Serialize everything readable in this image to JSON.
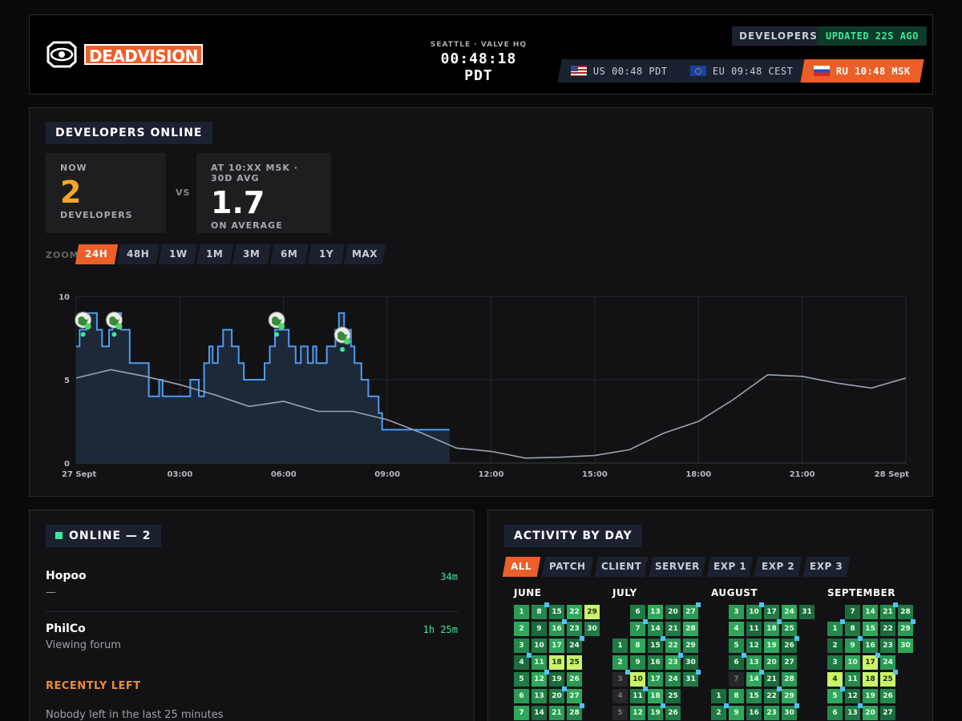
{
  "header": {
    "logo_text_dead": "DEAD",
    "logo_text_vision": "VISION",
    "clock_location": "SEATTLE · VALVE HQ",
    "clock_time": "00:48:18 PDT",
    "developers_label": "DEVELOPERS",
    "updated_label": "UPDATED 22S AGO",
    "timezones": [
      {
        "label": "US 00:48 PDT",
        "flag": "us-flag-icon",
        "active": false
      },
      {
        "label": "EU 09:48 CEST",
        "flag": "eu-flag-icon",
        "active": false
      },
      {
        "label": "RU 10:48 MSK",
        "flag": "ru-flag-icon",
        "active": true
      }
    ]
  },
  "developers_online": {
    "title": "DEVELOPERS ONLINE",
    "now_label": "NOW",
    "now_value": "2",
    "now_sub": "DEVELOPERS",
    "vs": "VS",
    "avg_label": "AT 10:XX MSK · 30D AVG",
    "avg_value": "1.7",
    "avg_sub": "ON AVERAGE",
    "zoom_label": "ZOOM",
    "zoom_options": [
      "24H",
      "48H",
      "1W",
      "1M",
      "3M",
      "6M",
      "1Y",
      "MAX"
    ],
    "zoom_active": "24H"
  },
  "chart_data": {
    "type": "line",
    "ylim": [
      0,
      10
    ],
    "y_ticks": [
      "0",
      "5",
      "10"
    ],
    "x_tick_labels": [
      "27 Sept",
      "03:00",
      "06:00",
      "09:00",
      "12:00",
      "15:00",
      "18:00",
      "21:00",
      "28 Sept"
    ],
    "xlim_hours": [
      0,
      24
    ],
    "series": [
      {
        "color": "#4d9cf0",
        "fill": true,
        "step": true,
        "points": [
          [
            0,
            7
          ],
          [
            0.1,
            7
          ],
          [
            0.1,
            8
          ],
          [
            0.3,
            8
          ],
          [
            0.3,
            9
          ],
          [
            0.6,
            9
          ],
          [
            0.6,
            8
          ],
          [
            0.75,
            8
          ],
          [
            0.75,
            7
          ],
          [
            0.95,
            7
          ],
          [
            0.95,
            8
          ],
          [
            1.05,
            8
          ],
          [
            1.05,
            9
          ],
          [
            1.3,
            9
          ],
          [
            1.3,
            8
          ],
          [
            1.55,
            8
          ],
          [
            1.55,
            6
          ],
          [
            2.1,
            6
          ],
          [
            2.1,
            4
          ],
          [
            2.4,
            4
          ],
          [
            2.4,
            5
          ],
          [
            2.5,
            5
          ],
          [
            2.5,
            4
          ],
          [
            3.3,
            4
          ],
          [
            3.3,
            5
          ],
          [
            3.55,
            5
          ],
          [
            3.55,
            4
          ],
          [
            3.7,
            4
          ],
          [
            3.7,
            6
          ],
          [
            3.85,
            6
          ],
          [
            3.85,
            7
          ],
          [
            3.95,
            7
          ],
          [
            3.95,
            6
          ],
          [
            4.1,
            6
          ],
          [
            4.1,
            7
          ],
          [
            4.25,
            7
          ],
          [
            4.25,
            8
          ],
          [
            4.5,
            8
          ],
          [
            4.5,
            7
          ],
          [
            4.7,
            7
          ],
          [
            4.7,
            6
          ],
          [
            4.85,
            6
          ],
          [
            4.85,
            5
          ],
          [
            5.45,
            5
          ],
          [
            5.45,
            6
          ],
          [
            5.6,
            6
          ],
          [
            5.6,
            7
          ],
          [
            5.75,
            7
          ],
          [
            5.75,
            8
          ],
          [
            6.15,
            8
          ],
          [
            6.15,
            7
          ],
          [
            6.35,
            7
          ],
          [
            6.35,
            6
          ],
          [
            6.5,
            6
          ],
          [
            6.5,
            7
          ],
          [
            6.7,
            7
          ],
          [
            6.7,
            6
          ],
          [
            6.85,
            6
          ],
          [
            6.85,
            7
          ],
          [
            6.95,
            7
          ],
          [
            6.95,
            6
          ],
          [
            7.25,
            6
          ],
          [
            7.25,
            7
          ],
          [
            7.5,
            7
          ],
          [
            7.5,
            8
          ],
          [
            7.6,
            8
          ],
          [
            7.6,
            9
          ],
          [
            7.75,
            9
          ],
          [
            7.75,
            8
          ],
          [
            7.95,
            8
          ],
          [
            7.95,
            7
          ],
          [
            8.05,
            7
          ],
          [
            8.05,
            6
          ],
          [
            8.25,
            6
          ],
          [
            8.25,
            5
          ],
          [
            8.45,
            5
          ],
          [
            8.45,
            4
          ],
          [
            8.75,
            4
          ],
          [
            8.75,
            3
          ],
          [
            8.85,
            3
          ],
          [
            8.85,
            2
          ],
          [
            9.5,
            2
          ],
          [
            9.5,
            2
          ],
          [
            10.8,
            2
          ]
        ]
      },
      {
        "color": "#9aa3b2",
        "fill": false,
        "step": false,
        "points": [
          [
            0,
            5.1
          ],
          [
            1,
            5.6
          ],
          [
            2,
            5.2
          ],
          [
            3,
            4.7
          ],
          [
            4,
            4.1
          ],
          [
            5,
            3.4
          ],
          [
            6,
            3.7
          ],
          [
            7,
            3.1
          ],
          [
            8,
            3.1
          ],
          [
            9,
            2.6
          ],
          [
            10,
            1.8
          ],
          [
            11,
            0.9
          ],
          [
            12,
            0.7
          ],
          [
            13,
            0.3
          ],
          [
            14,
            0.35
          ],
          [
            15,
            0.45
          ],
          [
            16,
            0.8
          ],
          [
            17,
            1.8
          ],
          [
            18,
            2.5
          ],
          [
            19,
            3.8
          ],
          [
            20,
            5.3
          ],
          [
            21,
            5.2
          ],
          [
            22,
            4.8
          ],
          [
            23,
            4.5
          ],
          [
            24,
            5.1
          ]
        ]
      }
    ],
    "markers": [
      [
        0.2,
        8.2
      ],
      [
        1.1,
        8.2
      ],
      [
        5.8,
        8.2
      ],
      [
        7.7,
        7.3
      ]
    ]
  },
  "online": {
    "title": "ONLINE — 2",
    "users": [
      {
        "name": "Hopoo",
        "sub": "—",
        "time": "34m"
      },
      {
        "name": "PhilCo",
        "sub": "Viewing forum",
        "time": "1h 25m"
      }
    ],
    "recently_left_label": "RECENTLY LEFT",
    "recently_left_text": "Nobody left in the last 25 minutes"
  },
  "activity": {
    "title": "ACTIVITY BY DAY",
    "filters": [
      "ALL",
      "PATCH",
      "CLIENT",
      "SERVER",
      "EXP 1",
      "EXP 2",
      "EXP 3"
    ],
    "filter_active": "ALL",
    "months": [
      {
        "name": "JUNE",
        "start_dow": 0,
        "days": 30,
        "light": [
          18,
          25,
          29
        ],
        "dark": []
      },
      {
        "name": "JULY",
        "start_dow": 2,
        "days": 31,
        "light": [
          10
        ],
        "dark": [
          3,
          4,
          5
        ]
      },
      {
        "name": "AUGUST",
        "start_dow": 5,
        "days": 31,
        "light": [],
        "dark": [
          7
        ]
      },
      {
        "name": "SEPTEMBER",
        "start_dow": 1,
        "days": 30,
        "light": [
          4,
          17,
          18,
          25
        ],
        "dark": []
      }
    ]
  }
}
